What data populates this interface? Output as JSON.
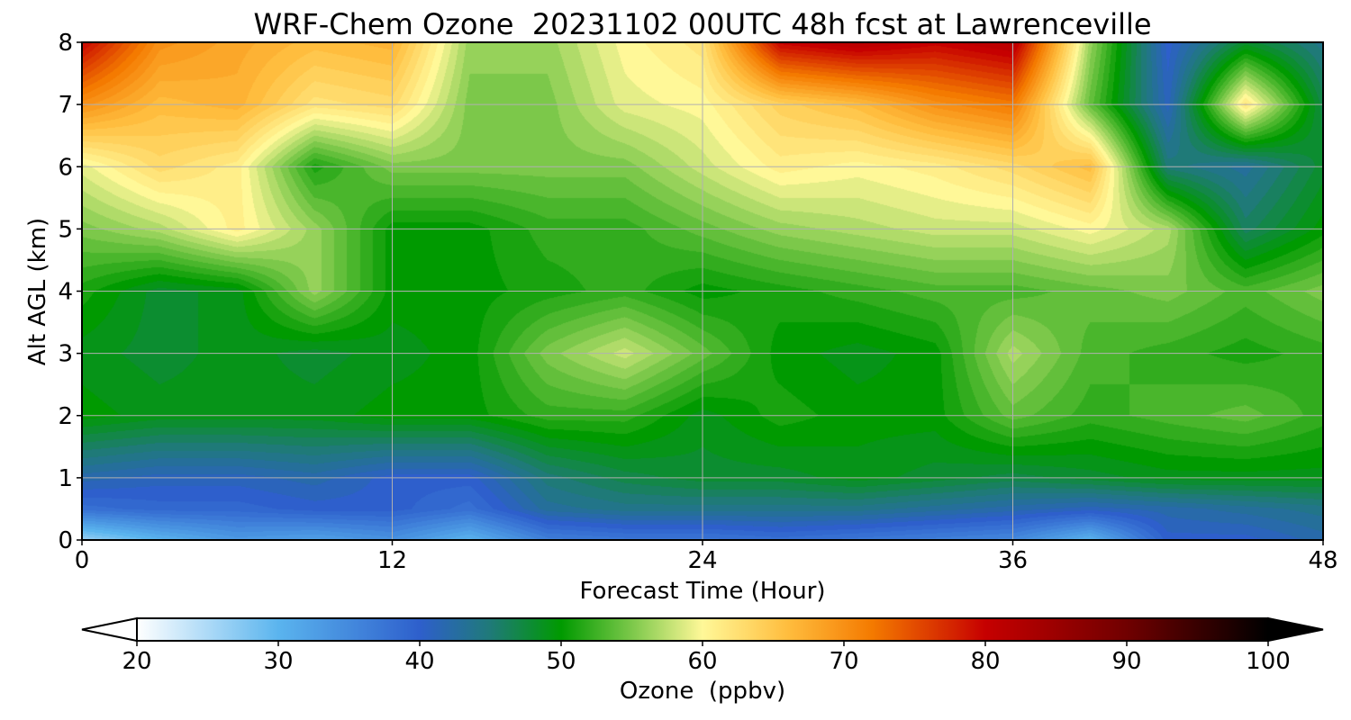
{
  "chart_data": {
    "type": "heatmap",
    "title": "WRF-Chem Ozone  20231102 00UTC 48h fcst at Lawrenceville",
    "xlabel": "Forecast Time (Hour)",
    "ylabel": "Alt AGL (km)",
    "xlim": [
      0,
      48
    ],
    "ylim": [
      0,
      8
    ],
    "x_ticks": [
      0,
      12,
      24,
      36,
      48
    ],
    "y_ticks": [
      0,
      1,
      2,
      3,
      4,
      5,
      6,
      7,
      8
    ],
    "grid": true,
    "colorbar": {
      "label": "Ozone  (ppbv)",
      "range": [
        20,
        100
      ],
      "ticks": [
        20,
        30,
        40,
        50,
        60,
        70,
        80,
        90,
        100
      ],
      "extend": "both",
      "stops": [
        {
          "v": 20,
          "c": "#ffffff"
        },
        {
          "v": 30,
          "c": "#5ab4ee"
        },
        {
          "v": 40,
          "c": "#2e5fcc"
        },
        {
          "v": 45,
          "c": "#1f7a78"
        },
        {
          "v": 50,
          "c": "#009a00"
        },
        {
          "v": 55,
          "c": "#7cc84a"
        },
        {
          "v": 60,
          "c": "#fff898"
        },
        {
          "v": 66,
          "c": "#ffbd3e"
        },
        {
          "v": 72,
          "c": "#f47a00"
        },
        {
          "v": 80,
          "c": "#c60000"
        },
        {
          "v": 90,
          "c": "#700000"
        },
        {
          "v": 100,
          "c": "#000000"
        }
      ]
    },
    "hours": [
      0,
      3,
      6,
      9,
      12,
      15,
      18,
      21,
      24,
      27,
      30,
      33,
      36,
      39,
      42,
      45,
      48
    ],
    "altitudes_km": [
      0,
      0.5,
      1,
      2,
      3,
      4,
      5,
      6,
      7,
      8
    ],
    "values": [
      [
        26,
        30,
        33,
        32,
        34,
        30,
        36,
        37,
        37,
        38,
        37,
        36,
        35,
        30,
        40,
        40,
        42
      ],
      [
        38,
        39,
        39,
        40,
        40,
        38,
        43,
        44,
        44,
        44,
        44,
        43,
        42,
        41,
        42,
        43,
        44
      ],
      [
        42,
        41,
        41,
        42,
        40,
        40,
        45,
        47,
        48,
        48,
        49,
        48,
        47,
        48,
        49,
        49,
        49
      ],
      [
        50,
        49,
        49,
        49,
        50,
        50,
        52,
        52,
        49,
        51,
        50,
        50,
        54,
        52,
        53,
        54,
        52
      ],
      [
        49,
        48,
        49,
        48,
        49,
        50,
        55,
        58,
        54,
        50,
        49,
        50,
        57,
        53,
        52,
        51,
        52
      ],
      [
        51,
        48,
        49,
        56,
        50,
        50,
        51,
        52,
        50,
        51,
        52,
        53,
        53,
        54,
        55,
        53,
        55
      ],
      [
        55,
        57,
        61,
        56,
        50,
        50,
        52,
        52,
        54,
        56,
        57,
        58,
        58,
        60,
        57,
        46,
        50
      ],
      [
        59,
        63,
        61,
        51,
        55,
        55,
        55,
        55,
        58,
        61,
        60,
        61,
        63,
        66,
        45,
        43,
        48
      ],
      [
        70,
        66,
        67,
        62,
        63,
        55,
        55,
        59,
        60,
        64,
        66,
        70,
        72,
        54,
        41,
        62,
        47
      ],
      [
        80,
        70,
        68,
        66,
        67,
        56,
        56,
        60,
        62,
        80,
        82,
        80,
        82,
        56,
        40,
        48,
        44
      ]
    ]
  }
}
